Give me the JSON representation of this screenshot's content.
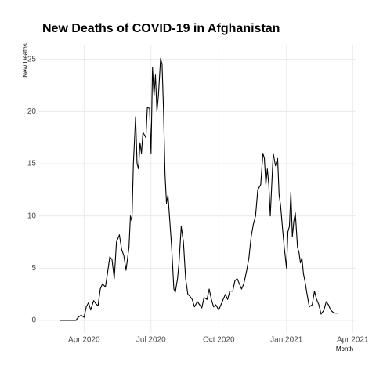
{
  "chart_data": {
    "type": "line",
    "title": "New Deaths of COVID-19 in Afghanistan",
    "xlabel": "Month",
    "ylabel": "New Deaths",
    "x": [
      "2020-02-28",
      "2020-03-21",
      "2020-03-24",
      "2020-03-28",
      "2020-04-01",
      "2020-04-04",
      "2020-04-07",
      "2020-04-10",
      "2020-04-14",
      "2020-04-17",
      "2020-04-20",
      "2020-04-23",
      "2020-04-26",
      "2020-04-30",
      "2020-05-03",
      "2020-05-06",
      "2020-05-09",
      "2020-05-12",
      "2020-05-15",
      "2020-05-19",
      "2020-05-22",
      "2020-05-25",
      "2020-05-28",
      "2020-06-01",
      "2020-06-03",
      "2020-06-05",
      "2020-06-07",
      "2020-06-10",
      "2020-06-12",
      "2020-06-14",
      "2020-06-16",
      "2020-06-18",
      "2020-06-20",
      "2020-06-24",
      "2020-06-26",
      "2020-06-29",
      "2020-07-01",
      "2020-07-03",
      "2020-07-05",
      "2020-07-07",
      "2020-07-09",
      "2020-07-11",
      "2020-07-14",
      "2020-07-16",
      "2020-07-18",
      "2020-07-20",
      "2020-07-22",
      "2020-07-24",
      "2020-07-26",
      "2020-07-29",
      "2020-08-01",
      "2020-08-03",
      "2020-08-06",
      "2020-08-08",
      "2020-08-11",
      "2020-08-14",
      "2020-08-17",
      "2020-08-20",
      "2020-08-23",
      "2020-08-26",
      "2020-08-29",
      "2020-09-02",
      "2020-09-05",
      "2020-09-08",
      "2020-09-11",
      "2020-09-15",
      "2020-09-18",
      "2020-09-21",
      "2020-09-24",
      "2020-09-27",
      "2020-10-01",
      "2020-10-04",
      "2020-10-07",
      "2020-10-10",
      "2020-10-13",
      "2020-10-16",
      "2020-10-20",
      "2020-10-23",
      "2020-10-26",
      "2020-10-29",
      "2020-11-01",
      "2020-11-04",
      "2020-11-08",
      "2020-11-11",
      "2020-11-14",
      "2020-11-17",
      "2020-11-20",
      "2020-11-23",
      "2020-11-27",
      "2020-11-30",
      "2020-12-02",
      "2020-12-04",
      "2020-12-06",
      "2020-12-08",
      "2020-12-10",
      "2020-12-12",
      "2020-12-14",
      "2020-12-17",
      "2020-12-20",
      "2020-12-22",
      "2020-12-24",
      "2020-12-27",
      "2020-12-29",
      "2021-01-01",
      "2021-01-03",
      "2021-01-05",
      "2021-01-07",
      "2021-01-09",
      "2021-01-11",
      "2021-01-13",
      "2021-01-16",
      "2021-01-18",
      "2021-01-20",
      "2021-01-22",
      "2021-01-24",
      "2021-01-26",
      "2021-01-29",
      "2021-02-01",
      "2021-02-05",
      "2021-02-08",
      "2021-02-11",
      "2021-02-14",
      "2021-02-17",
      "2021-02-21",
      "2021-02-24",
      "2021-02-27",
      "2021-03-02",
      "2021-03-05",
      "2021-03-08",
      "2021-03-12"
    ],
    "values": [
      0,
      0,
      0.3,
      0.5,
      0.3,
      1.3,
      1.7,
      1.0,
      1.9,
      1.6,
      1.4,
      3.0,
      3.5,
      3.2,
      4.6,
      6.1,
      5.8,
      4.0,
      7.5,
      8.2,
      6.8,
      6.2,
      4.8,
      7.0,
      10.0,
      9.5,
      15,
      19.5,
      15,
      14.5,
      17,
      16,
      18,
      17.5,
      20.4,
      20.3,
      16,
      24.2,
      21.5,
      23.5,
      20,
      21.5,
      25.1,
      24.5,
      20,
      14,
      11.2,
      12,
      10,
      7,
      3,
      2.7,
      4,
      5.5,
      9,
      7.5,
      4,
      2.5,
      2.3,
      2,
      1.3,
      1.8,
      1.5,
      1.2,
      2.2,
      2.0,
      3.0,
      2.0,
      1.3,
      1.5,
      1.0,
      1.5,
      2.0,
      2.5,
      2.0,
      2.8,
      2.8,
      3.8,
      4.0,
      3.5,
      3.0,
      3.5,
      4.8,
      6.0,
      8.0,
      9.2,
      10,
      12.5,
      13,
      16,
      15.5,
      13,
      14.5,
      13,
      10,
      13,
      16,
      14.8,
      15.5,
      12,
      11,
      8.5,
      7,
      5,
      8.5,
      9.0,
      12.3,
      8.0,
      9.5,
      10.3,
      7.0,
      6.5,
      5.5,
      6.0,
      4.5,
      3.8,
      2.5,
      1.3,
      1.5,
      2.8,
      2.0,
      1.5,
      0.6,
      1.0,
      1.8,
      1.5,
      1.0,
      0.8,
      0.7,
      0.7
    ],
    "color": "#000000",
    "xlim": [
      "2020-01-31",
      "2021-04-06"
    ],
    "xticks": [
      {
        "value": "2020-04-01",
        "label": "Apr 2020"
      },
      {
        "value": "2020-07-01",
        "label": "Jul 2020"
      },
      {
        "value": "2020-10-01",
        "label": "Oct 2020"
      },
      {
        "value": "2021-01-01",
        "label": "Jan 2021"
      },
      {
        "value": "2021-04-01",
        "label": "Apr 2021"
      }
    ],
    "ylim": [
      -1.2,
      26.4
    ],
    "yticks": [
      0,
      5,
      10,
      15,
      20,
      25
    ],
    "grid": true
  }
}
